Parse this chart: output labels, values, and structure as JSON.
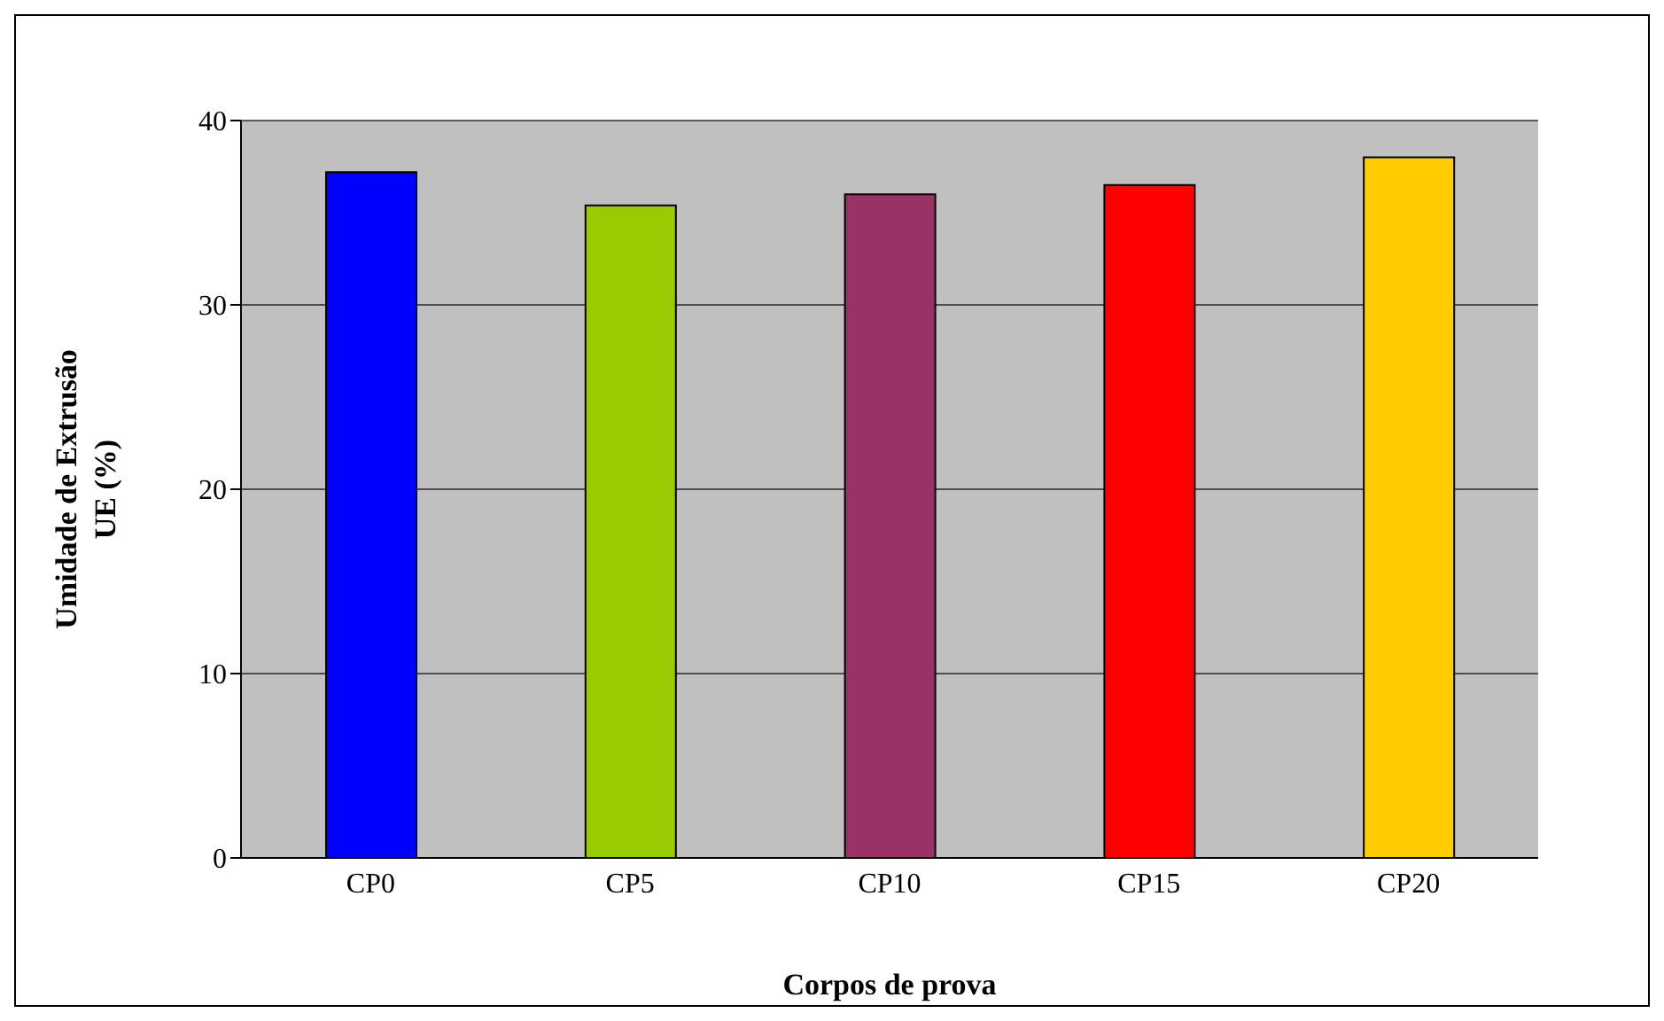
{
  "chart_data": {
    "type": "bar",
    "categories": [
      "CP0",
      "CP5",
      "CP10",
      "CP15",
      "CP20"
    ],
    "values": [
      37.2,
      35.4,
      36.0,
      36.5,
      38.0
    ],
    "colors": [
      "#0000ff",
      "#99cc00",
      "#993366",
      "#ff0000",
      "#ffcc00"
    ],
    "xlabel": "Corpos de prova",
    "ylabel": "Umidade de Extrusão\nUE (%)",
    "ylim": [
      0,
      40
    ],
    "yticks": [
      0,
      10,
      20,
      30,
      40
    ],
    "grid": "y"
  }
}
